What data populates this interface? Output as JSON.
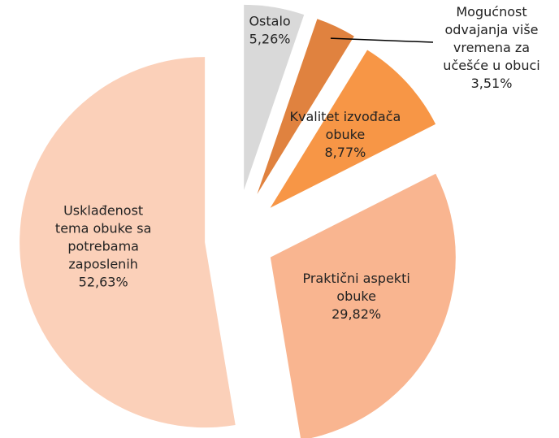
{
  "chart_data": {
    "type": "pie",
    "categories": [
      "Ostalo",
      "Mogućnost odvajanja više vremena za učešće u obuci",
      "Kvalitet izvođača obuke",
      "Praktični aspekti obuke",
      "Usklađenost tema obuke sa potrebama zaposlenih"
    ],
    "values": [
      5.26,
      3.51,
      8.77,
      29.82,
      52.63
    ],
    "value_labels": [
      "5,26%",
      "3,51%",
      "8,77%",
      "29,82%",
      "52,63%"
    ],
    "colors": [
      "#d9d9d9",
      "#e0823f",
      "#f79646",
      "#f9b590",
      "#fbd0b9"
    ]
  }
}
